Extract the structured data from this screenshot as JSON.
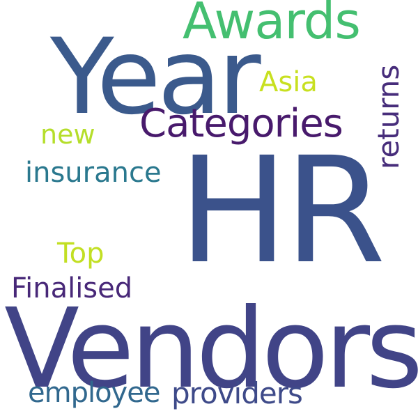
{
  "words": [
    {
      "key": "hr",
      "text": "HR",
      "color": "#3b528b"
    },
    {
      "key": "vendors",
      "text": "Vendors",
      "color": "#414487"
    },
    {
      "key": "year",
      "text": "Year",
      "color": "#3b5a8c"
    },
    {
      "key": "awards",
      "text": "Awards",
      "color": "#44bf70"
    },
    {
      "key": "categories",
      "text": "Categories",
      "color": "#481a6c"
    },
    {
      "key": "returns",
      "text": "returns",
      "color": "#472d7b"
    },
    {
      "key": "asia",
      "text": "Asia",
      "color": "#c8e020"
    },
    {
      "key": "new",
      "text": "new",
      "color": "#b5de2b"
    },
    {
      "key": "insurance",
      "text": "insurance",
      "color": "#2a788e"
    },
    {
      "key": "top",
      "text": "Top",
      "color": "#c2df23"
    },
    {
      "key": "finalised",
      "text": "Finalised",
      "color": "#482878"
    },
    {
      "key": "employee",
      "text": "employee",
      "color": "#31688e"
    },
    {
      "key": "providers",
      "text": "providers",
      "color": "#3e4a89"
    }
  ]
}
